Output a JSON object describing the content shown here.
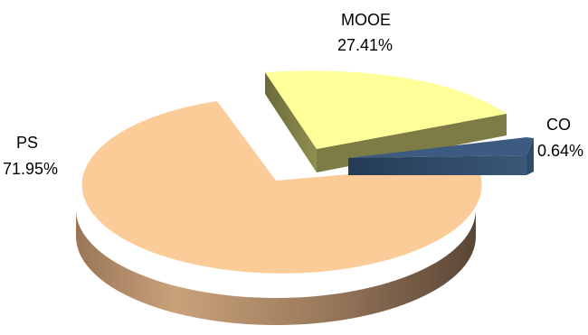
{
  "chart_data": {
    "type": "pie",
    "style": "3d-exploded",
    "categories": [
      "PS",
      "MOOE",
      "CO"
    ],
    "values": [
      71.95,
      27.41,
      0.64
    ],
    "value_labels": [
      "71.95%",
      "27.41%",
      "0.64%"
    ],
    "colors": {
      "PS": "#FBCB98",
      "MOOE": "#FFFF99",
      "CO": "#3D5A80"
    },
    "legend": "none",
    "title": ""
  }
}
